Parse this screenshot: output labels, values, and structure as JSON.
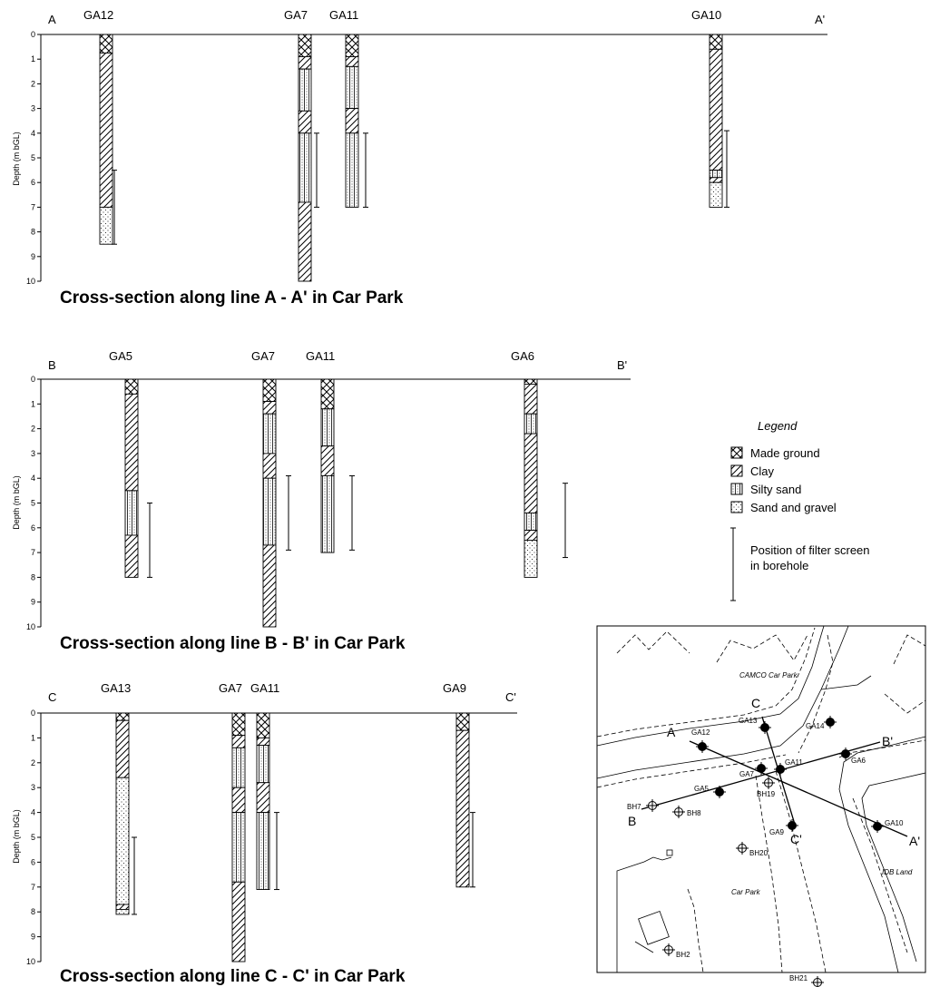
{
  "axis_label": "Depth (m bGL)",
  "depth_ticks": [
    "0",
    "1",
    "2",
    "3",
    "4",
    "5",
    "6",
    "7",
    "8",
    "9",
    "10"
  ],
  "sections": [
    {
      "title": "Cross-section along line A - A' in Car Park",
      "start_label": "A",
      "end_label": "A'",
      "boreholes": [
        {
          "name": "GA12",
          "layers": [
            [
              "made_ground",
              0,
              0.75
            ],
            [
              "clay",
              0.75,
              7.0
            ],
            [
              "sand_gravel",
              7.0,
              8.5
            ]
          ],
          "screen": [
            5.5,
            8.5
          ]
        },
        {
          "name": "GA7",
          "layers": [
            [
              "made_ground",
              0,
              0.9
            ],
            [
              "clay",
              0.9,
              1.4
            ],
            [
              "silty_sand",
              1.4,
              3.1
            ],
            [
              "clay",
              3.1,
              4.0
            ],
            [
              "silty_sand",
              4.0,
              6.8
            ],
            [
              "clay",
              6.8,
              10.0
            ]
          ],
          "screen": [
            4.0,
            7.0
          ]
        },
        {
          "name": "GA11",
          "layers": [
            [
              "made_ground",
              0,
              0.9
            ],
            [
              "clay",
              0.9,
              1.3
            ],
            [
              "silty_sand",
              1.3,
              3.0
            ],
            [
              "clay",
              3.0,
              4.0
            ],
            [
              "silty_sand",
              4.0,
              7.0
            ]
          ],
          "screen": [
            4.0,
            7.0
          ]
        },
        {
          "name": "GA10",
          "layers": [
            [
              "made_ground",
              0,
              0.6
            ],
            [
              "clay",
              0.6,
              5.5
            ],
            [
              "silty_sand",
              5.5,
              5.8
            ],
            [
              "clay",
              5.8,
              6.0
            ],
            [
              "sand_gravel",
              6.0,
              7.0
            ]
          ],
          "screen": [
            3.9,
            7.0
          ]
        }
      ]
    },
    {
      "title": "Cross-section along line B - B' in Car Park",
      "start_label": "B",
      "end_label": "B'",
      "boreholes": [
        {
          "name": "GA5",
          "layers": [
            [
              "made_ground",
              0,
              0.6
            ],
            [
              "clay",
              0.6,
              4.5
            ],
            [
              "silty_sand",
              4.5,
              6.3
            ],
            [
              "clay",
              6.3,
              8.0
            ]
          ],
          "screen": [
            5.0,
            8.0
          ]
        },
        {
          "name": "GA7",
          "layers": [
            [
              "made_ground",
              0,
              0.9
            ],
            [
              "clay",
              0.9,
              1.4
            ],
            [
              "silty_sand",
              1.4,
              3.0
            ],
            [
              "clay",
              3.0,
              4.0
            ],
            [
              "silty_sand",
              4.0,
              6.7
            ],
            [
              "clay",
              6.7,
              10.0
            ]
          ],
          "screen": [
            3.9,
            6.9
          ]
        },
        {
          "name": "GA11",
          "layers": [
            [
              "made_ground",
              0,
              1.2
            ],
            [
              "silty_sand",
              1.2,
              2.7
            ],
            [
              "clay",
              2.7,
              3.9
            ],
            [
              "silty_sand",
              3.9,
              7.0
            ]
          ],
          "screen": [
            3.9,
            6.9
          ]
        },
        {
          "name": "GA6",
          "layers": [
            [
              "made_ground",
              0,
              0.2
            ],
            [
              "clay",
              0.2,
              1.4
            ],
            [
              "silty_sand",
              1.4,
              2.2
            ],
            [
              "clay",
              2.2,
              5.4
            ],
            [
              "silty_sand",
              5.4,
              6.1
            ],
            [
              "clay",
              6.1,
              6.5
            ],
            [
              "sand_gravel",
              6.5,
              8.0
            ]
          ],
          "screen": [
            4.2,
            7.2
          ]
        }
      ]
    },
    {
      "title": "Cross-section along line C - C' in Car Park",
      "start_label": "C",
      "end_label": "C'",
      "boreholes": [
        {
          "name": "GA13",
          "layers": [
            [
              "made_ground",
              0,
              0.3
            ],
            [
              "clay",
              0.3,
              2.6
            ],
            [
              "sand_gravel",
              2.6,
              7.7
            ],
            [
              "clay",
              7.7,
              7.9
            ],
            [
              "sand_gravel",
              7.9,
              8.1
            ]
          ],
          "screen": [
            5.0,
            8.1
          ]
        },
        {
          "name": "GA7",
          "layers": [
            [
              "made_ground",
              0,
              0.9
            ],
            [
              "clay",
              0.9,
              1.4
            ],
            [
              "silty_sand",
              1.4,
              3.0
            ],
            [
              "clay",
              3.0,
              4.0
            ],
            [
              "silty_sand",
              4.0,
              6.8
            ],
            [
              "clay",
              6.8,
              10.0
            ]
          ],
          "screen": null
        },
        {
          "name": "GA11",
          "layers": [
            [
              "made_ground",
              0,
              1.0
            ],
            [
              "clay",
              1.0,
              1.3
            ],
            [
              "silty_sand",
              1.3,
              2.8
            ],
            [
              "clay",
              2.8,
              4.0
            ],
            [
              "silty_sand",
              4.0,
              7.1
            ]
          ],
          "screen": [
            4.0,
            7.1
          ]
        },
        {
          "name": "GA9",
          "layers": [
            [
              "made_ground",
              0,
              0.7
            ],
            [
              "clay",
              0.7,
              7.0
            ]
          ],
          "screen": [
            4.0,
            7.0
          ]
        }
      ]
    }
  ],
  "legend": {
    "title": "Legend",
    "items": [
      {
        "key": "made_ground",
        "label": "Made ground"
      },
      {
        "key": "clay",
        "label": "Clay"
      },
      {
        "key": "silty_sand",
        "label": "Silty sand"
      },
      {
        "key": "sand_gravel",
        "label": "Sand and gravel"
      }
    ],
    "screen_label_1": "Position of filter screen",
    "screen_label_2": "in borehole"
  },
  "map": {
    "area_labels": [
      "CAMCO Car Park",
      "Car Park",
      "IDB Land"
    ],
    "line_labels": [
      "A",
      "A'",
      "B",
      "B'",
      "C",
      "C'"
    ],
    "boreholes_ga": [
      "GA12",
      "GA13",
      "GA14",
      "GA11",
      "GA7",
      "GA6",
      "GA5",
      "GA9",
      "GA10"
    ],
    "boreholes_bh": [
      "BH7",
      "BH8",
      "BH19",
      "BH20",
      "BH2",
      "BH21"
    ]
  }
}
